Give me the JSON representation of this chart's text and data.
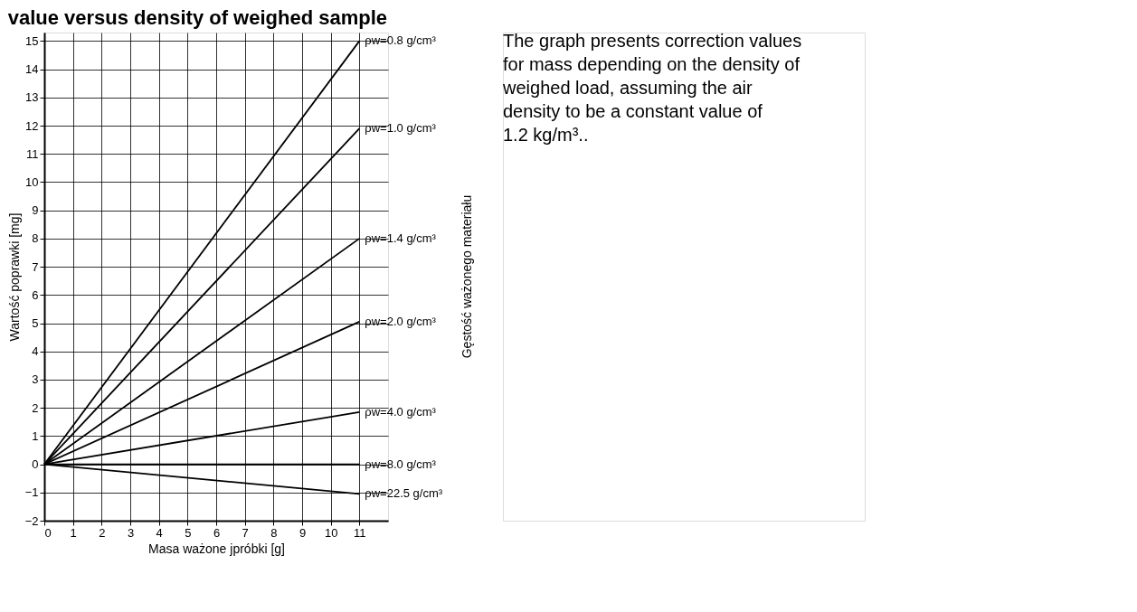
{
  "chart_data": {
    "type": "line",
    "title": "value versus density of weighed sample",
    "xlabel": "Masa ważone jpróbki [g]",
    "ylabel": "Wartość poprawki [mg]",
    "legend_title": "Gęstość ważonego materiału",
    "x": [
      0,
      11
    ],
    "series": [
      {
        "name": "ρw=0.8 g/cm³",
        "color": "#000000",
        "values": [
          0,
          15
        ]
      },
      {
        "name": "ρw=1.0 g/cm³",
        "color": "#000000",
        "values": [
          0,
          11.9
        ]
      },
      {
        "name": "ρw=1.4 g/cm³",
        "color": "#000000",
        "values": [
          0,
          8
        ]
      },
      {
        "name": "ρw=2.0 g/cm³",
        "color": "#000000",
        "values": [
          0,
          5.05
        ]
      },
      {
        "name": "ρw=4.0 g/cm³",
        "color": "#000000",
        "values": [
          0,
          1.85
        ]
      },
      {
        "name": "ρw=8.0 g/cm³",
        "color": "#000000",
        "values": [
          0,
          0
        ]
      },
      {
        "name": "ρw=22.5 g/cm³",
        "color": "#000000",
        "values": [
          0,
          -1.05
        ]
      }
    ],
    "xlim": [
      0,
      12
    ],
    "xticks": [
      0,
      1,
      2,
      3,
      4,
      5,
      6,
      7,
      8,
      9,
      10,
      11
    ],
    "ylim": [
      -2,
      15.3
    ],
    "yticks": [
      -2,
      -1,
      0,
      1,
      2,
      3,
      4,
      5,
      6,
      7,
      8,
      9,
      10,
      11,
      12,
      13,
      14,
      15
    ],
    "grid": true,
    "legend": false,
    "marker": "none",
    "line_style": "solid",
    "annotations": [
      "The graph presents correction values for mass depending on the density of weighed load, assuming the air density to be a constant value of 1.2 kg/m³.."
    ]
  }
}
